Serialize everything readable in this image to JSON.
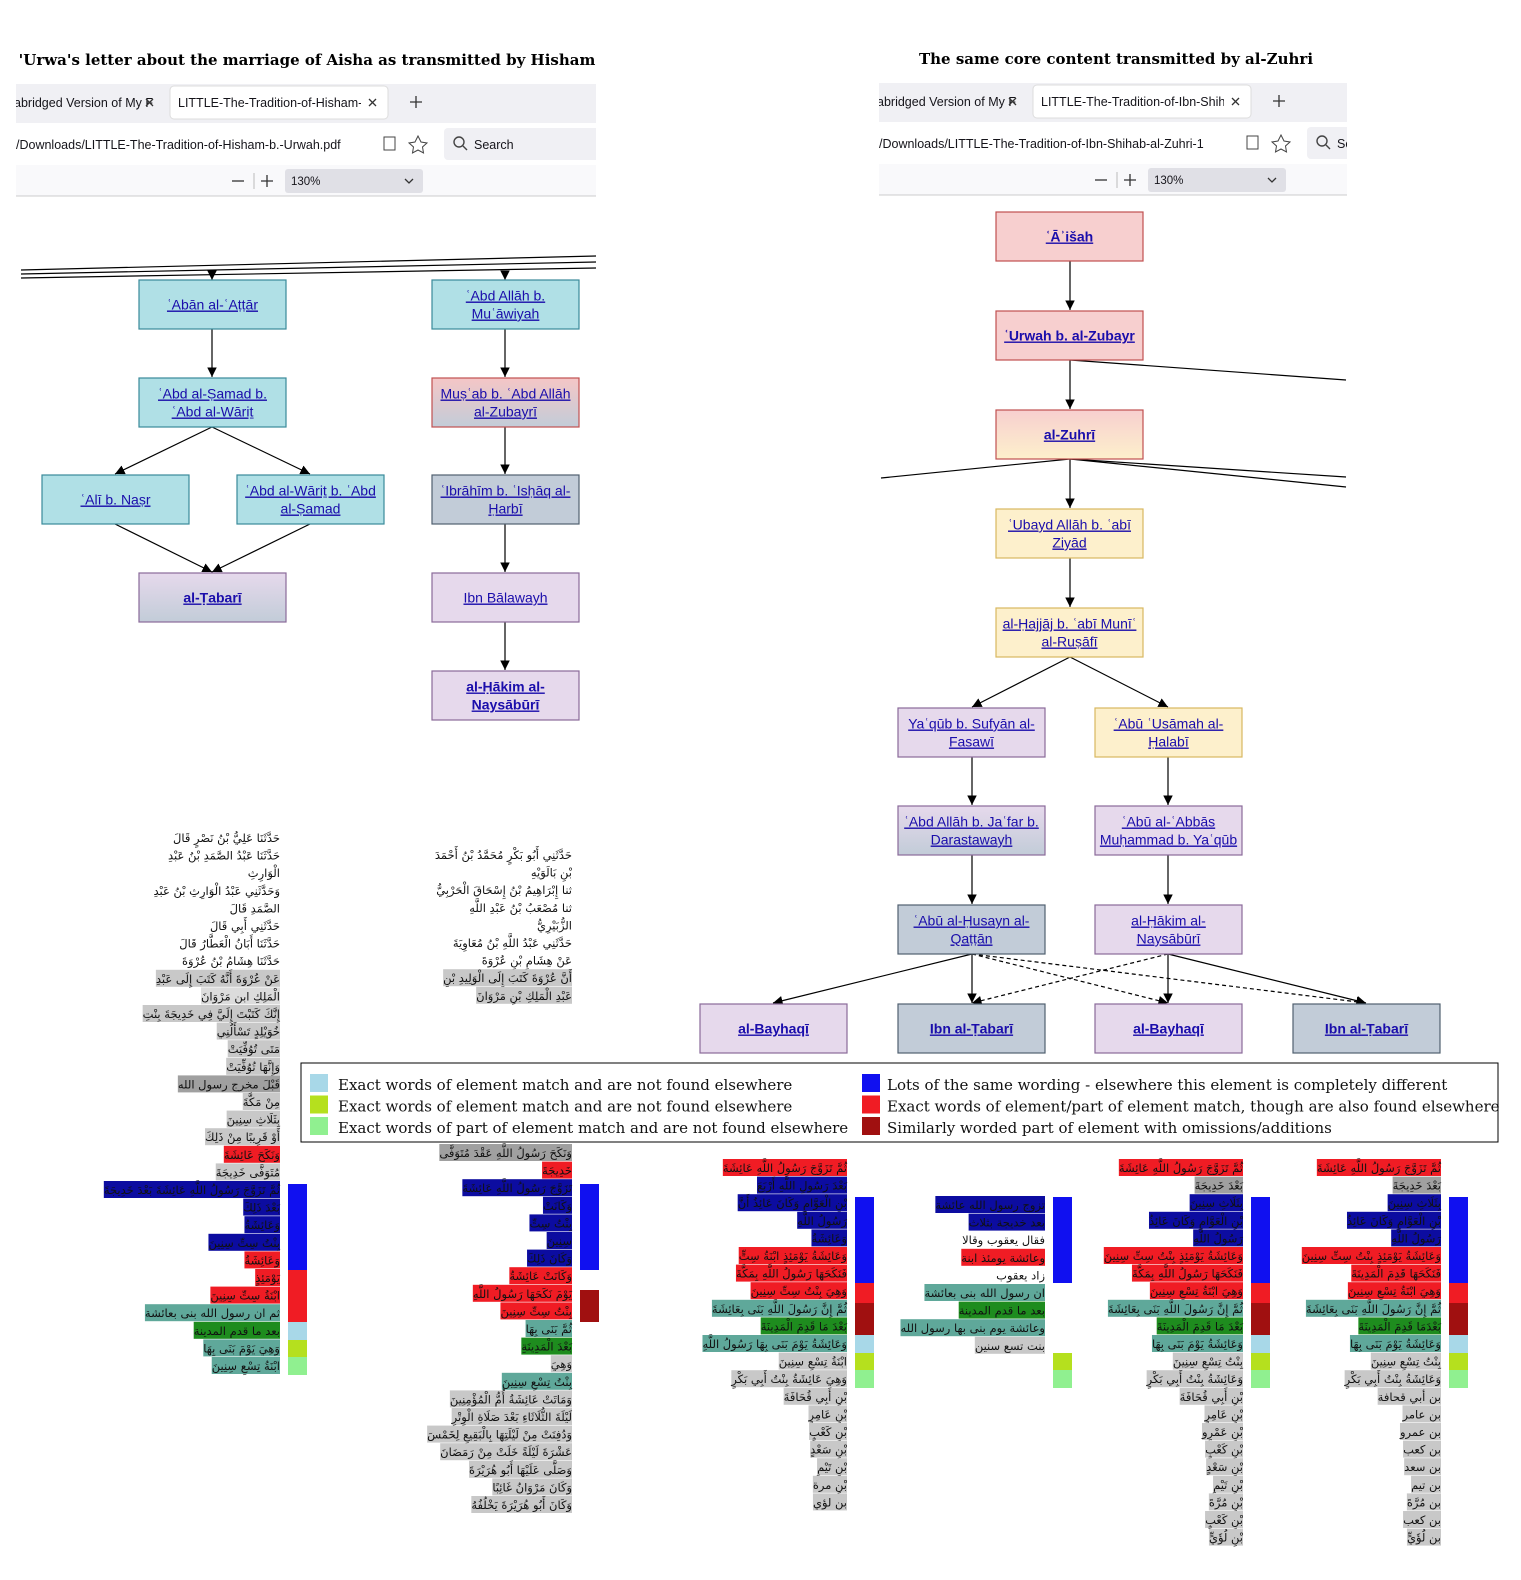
{
  "panels": [
    {
      "title": "'Urwa's letter about the marriage of Aisha as transmitted by Hisham",
      "tabs": [
        "abridged Version of My F",
        "LITTLE-The-Tradition-of-Hisham-b."
      ],
      "url": "/Downloads/LITTLE-The-Tradition-of-Hisham-b.-Urwah.pdf",
      "search": "Search",
      "zoom": "130%",
      "nodes": [
        {
          "label": [
            "ʿAbān al-ʿAṭṭār"
          ],
          "fill": "#b0e0e6",
          "stroke": "#3a8a9a"
        },
        {
          "label": [
            "ʿAbd Allāh b.",
            "Muʿāwiyah"
          ],
          "fill": "#b0e0e6",
          "stroke": "#3a8a9a"
        },
        {
          "label": [
            "ʿAbd al-Ṣamad b.",
            "ʿAbd al-Wāriṯ"
          ],
          "fill": "#b0e0e6",
          "stroke": "#3a8a9a"
        },
        {
          "label": [
            "Muṣʿab b. ʿAbd Allāh",
            "al-Zubayrī"
          ],
          "fill": [
            "#f5c6c6",
            "#c2ccd8"
          ],
          "stroke": "#c05050"
        },
        {
          "label": [
            "ʿAlī b. Naṣr"
          ],
          "fill": "#b0e0e6",
          "stroke": "#3a8a9a"
        },
        {
          "label": [
            "ʿAbd al-Wāriṯ b. ʿAbd",
            "al-Ṣamad"
          ],
          "fill": "#b0e0e6",
          "stroke": "#3a8a9a"
        },
        {
          "label": [
            "ʿIbrāhīm b. ʿIsḥāq al-",
            "Ḥarbī"
          ],
          "fill": "#c2ccd8",
          "stroke": "#506070"
        },
        {
          "label": [
            "al-Ṭabarī"
          ],
          "fill": [
            "#e6d9ec",
            "#c2ccd8"
          ],
          "stroke": "#8a6a9a",
          "bold": true
        },
        {
          "label": [
            "Ibn Bālawayh"
          ],
          "fill": "#e6d9ec",
          "stroke": "#8a6a9a"
        },
        {
          "label": [
            "al-Ḥākim al-",
            "Naysābūrī"
          ],
          "fill": "#e6d9ec",
          "stroke": "#8a6a9a",
          "bold": true
        }
      ]
    },
    {
      "title": "The same core content transmitted by al-Zuhri",
      "tabs": [
        "abridged Version of My F",
        "LITTLE-The-Tradition-of-Ibn-Shihab"
      ],
      "url": "/Downloads/LITTLE-The-Tradition-of-Ibn-Shihab-al-Zuhri-1",
      "search": "Se",
      "zoom": "130%",
      "nodes": [
        {
          "label": [
            "ʿĀʾišah"
          ],
          "fill": "#f7cfcf",
          "stroke": "#c05050",
          "bold": true
        },
        {
          "label": [
            "ʿUrwah b. al-Zubayr"
          ],
          "fill": "#f7cfcf",
          "stroke": "#c05050",
          "bold": true
        },
        {
          "label": [
            "al-Zuhrī"
          ],
          "fill": [
            "#f7cfcf",
            "#fdf0cc"
          ],
          "stroke": "#c05050",
          "bold": true
        },
        {
          "label": [
            "ʿUbayd Allāh b. ʿabī",
            "Ziyād"
          ],
          "fill": "#fdf0cc",
          "stroke": "#d8b860"
        },
        {
          "label": [
            "al-Ḥajjāj b. ʿabī Munīʿ",
            "al-Ruṣāfī"
          ],
          "fill": "#fdf0cc",
          "stroke": "#d8b860"
        },
        {
          "label": [
            "Yaʿqūb b. Sufyān al-",
            "Fasawī"
          ],
          "fill": "#e6d9ec",
          "stroke": "#8a6a9a"
        },
        {
          "label": [
            "ʿAbū ʿUsāmah al-",
            "Ḥalabī"
          ],
          "fill": "#fdf0cc",
          "stroke": "#d8b860"
        },
        {
          "label": [
            "ʿAbd Allāh b. Jaʿfar b.",
            "Darastawayh"
          ],
          "fill": [
            "#e6d9ec",
            "#c2ccd8"
          ],
          "stroke": "#8a6a9a"
        },
        {
          "label": [
            "ʿAbū al-ʿAbbās",
            "Muḥammad b. Yaʿqūb"
          ],
          "fill": "#e6d9ec",
          "stroke": "#8a6a9a"
        },
        {
          "label": [
            "ʿAbū al-Ḥusayn al-",
            "Qaṭṭān"
          ],
          "fill": "#c2ccd8",
          "stroke": "#506070"
        },
        {
          "label": [
            "al-Ḥākim al-",
            "Naysābūrī"
          ],
          "fill": "#e6d9ec",
          "stroke": "#8a6a9a"
        },
        {
          "label": [
            "al-Bayhaqī"
          ],
          "fill": "#e6d9ec",
          "stroke": "#8a6a9a",
          "bold": true
        },
        {
          "label": [
            "Ibn al-Ṭabarī"
          ],
          "fill": "#c2ccd8",
          "stroke": "#506070",
          "bold": true
        },
        {
          "label": [
            "al-Bayhaqī"
          ],
          "fill": "#e6d9ec",
          "stroke": "#8a6a9a",
          "bold": true
        },
        {
          "label": [
            "Ibn al-Ṭabarī"
          ],
          "fill": "#c2ccd8",
          "stroke": "#506070",
          "bold": true
        }
      ]
    }
  ],
  "legend": [
    {
      "color": "#a8d8e8",
      "text": "Exact words of element match and are not found elsewhere"
    },
    {
      "color": "#b5e01e",
      "text": "Exact words of element match and are not found elsewhere"
    },
    {
      "color": "#90f090",
      "text": "Exact words of part of element match and are not found elsewhere"
    },
    {
      "color": "#1010f0",
      "text": "Lots of the same wording - elsewhere this element is completely different"
    },
    {
      "color": "#f01c24",
      "text": "Exact words of element/part of element match, though are also found elsewhere"
    },
    {
      "color": "#a01010",
      "text": "Similarly worded part of element with omissions/additions"
    }
  ],
  "texts": [
    {
      "bars": [
        "#1010f0",
        "#f01c24",
        "#a8d8e8",
        "#b5e01e",
        "#90f090"
      ],
      "blocks": [
        [
          {
            "t": "حَدَّثَنَا عَلِيُّ بْنُ نَصْرٍ قَالَ"
          },
          {
            "t": "حَدَّثَنَا عَبْدُ الصَّمَدِ بْنُ عَبْدِ"
          },
          {
            "t": "الْوَارِثِ"
          },
          {
            "t": "وَحَدَّثَنِي عَبْدُ الْوَارِثِ بْنُ عَبْدِ"
          },
          {
            "t": "الصَّمَدِ قَالَ"
          },
          {
            "t": "حَدَّثَنِي أَبِي قَالَ"
          },
          {
            "t": "حَدَّثَنَا أَبَانُ الْعَطَّارُ قَالَ"
          },
          {
            "t": "حَدَّثَنَا هِشَامُ بْنُ عُرْوَةَ"
          },
          {
            "t": "عَنْ عُرْوَةَ أَنَّهُ كَتَبَ إِلَى عَبْدِ",
            "bg": "#c8c8c8"
          },
          {
            "t": "الْمَلِكِ ابن مَرْوَانَ",
            "bg": "#dcdcdc"
          },
          {
            "t": "إِنَّكَ كَتَبْتَ إِلَيَّ فِي خَدِيجَةَ بِنْتِ",
            "bg": "#c8c8c8"
          },
          {
            "t": "خُوَيْلِدٍ تَسْأَلُنِي",
            "bg": "#c8c8c8"
          },
          {
            "t": "مَتَى تُوُفِّيَتْ",
            "bg": "#c8c8c8"
          },
          {
            "t": "وَإِنَّهَا تُوُفِّيَتْ",
            "bg": "#c8c8c8"
          },
          {
            "t": "قَبْلَ مخرج رسول الله",
            "bg": "#a0a0a0"
          },
          {
            "t": "مِنْ مَكَّةَ",
            "bg": "#c8c8c8"
          },
          {
            "t": "بِثَلَاثِ سِنِينَ",
            "bg": "#c8c8c8"
          },
          {
            "t": "أَوْ قَرِيبًا مِنْ ذَلِكَ",
            "bg": "#c8c8c8"
          },
          {
            "t": "وَنَكَحَ عَائِشَةَ",
            "bg": "#f01c24"
          },
          {
            "t": "مُتَوَفَّى خَدِيجَةَ",
            "bg": "#c8c8c8"
          },
          {
            "t": "ثُمَّ تَزَوَّجَ رَسُولُ اللَّهِ عَائِشَةَ بَعْدَ خَدِيجَةَ",
            "bg": "#0c0ca0"
          },
          {
            "t": "بَعْدَ ذَلِكَ",
            "bg": "#0c0ca0"
          },
          {
            "t": "وَعَائِشَةُ",
            "bg": "#0c0ca0"
          },
          {
            "t": "بِنْتُ سِتِّ سِنِينَ",
            "bg": "#0c0ca0"
          },
          {
            "t": "وَعَائِشَةُ",
            "bg": "#f01c24"
          },
          {
            "t": "يَوْمَئِذٍ",
            "bg": "#f01c24"
          },
          {
            "t": "ابْنَةُ سِتِّ سِنِينَ",
            "bg": "#f01c24"
          },
          {
            "t": "ثم ان رسول الله بنى بعائشة",
            "bg": "#5fa89a"
          },
          {
            "t": "بعد ما قدم المدينة",
            "bg": "#1e8c1e"
          },
          {
            "t": "وَهِيَ يَوْمَ بَنَى بِهَا",
            "bg": "#5fa89a"
          },
          {
            "t": "ابْنَةُ تِسْعِ سِنِينَ",
            "bg": "#5fa89a"
          }
        ]
      ]
    },
    {
      "bars": [
        "#1010f0",
        "#a01010"
      ],
      "blocks": [
        [
          {
            "t": "حَدَّثَنِي أَبُو بَكْرٍ مُحَمَّدُ بْنُ أَحْمَدَ"
          },
          {
            "t": "بْنِ بَالَوَيْهِ"
          },
          {
            "t": "ثنا إِبْرَاهِيمُ بْنُ إِسْحَاقَ الْحَرْبِيُّ"
          },
          {
            "t": "ثنا مُصْعَبُ بْنُ عَبْدِ اللَّهِ"
          },
          {
            "t": "الزُّبَيْرِيُّ"
          },
          {
            "t": "حَدَّثَنِي عَبْدُ اللَّهِ بْنُ مُعَاوِيَةَ"
          },
          {
            "t": "عَنْ هِشَامِ بْنِ عُرْوَةَ"
          },
          {
            "t": "أَنَّ عُرْوَةَ كَتَبَ إِلَى الْوَلِيدِ بْنِ",
            "bg": "#c8c8c8"
          },
          {
            "t": "عَبْدِ الْمَلِكِ بْنِ مَرْوَانَ",
            "bg": "#c8c8c8"
          }
        ],
        [
          {
            "t": "وَنَكَحَ رَسُولُ اللَّهِ عَقْدَ مُتَوَفَّى",
            "bg": "#a0a0a0"
          },
          {
            "t": "خَدِيجَةَ",
            "bg": "#f01c24"
          },
          {
            "t": "تَزَوَّجَ رَسُولُ اللَّهِ عَائِشَةَ",
            "bg": "#0c0ca0"
          },
          {
            "t": "وَكَانَتْ",
            "bg": "#0c0ca0"
          },
          {
            "t": "بِنْتُ سِتِّ",
            "bg": "#0c0ca0"
          },
          {
            "t": "سِنِينَ",
            "bg": "#0c0ca0"
          },
          {
            "t": "وَكَانَ ذَلِكَ",
            "bg": "#0c0ca0"
          },
          {
            "t": "وَكَانَتْ عَائِشَةُ",
            "bg": "#f01c24"
          },
          {
            "t": "يَوْمَ نَكَحَهَا رَسُولُ اللَّهِ",
            "bg": "#f01c24"
          },
          {
            "t": "بِنْتُ سِتِّ سِنِينَ",
            "bg": "#f01c24"
          },
          {
            "t": "ثُمَّ بَنَى بِهَا",
            "bg": "#5fa89a"
          },
          {
            "t": "بَعْدَ الْمَدِينَةِ",
            "bg": "#1e8c1e"
          },
          {
            "t": "وَهِيَ",
            "bg": "#c8c8c8"
          },
          {
            "t": "بِنْتُ تِسْعِ سِنِينَ",
            "bg": "#5fa89a"
          },
          {
            "t": "وَمَاتَتْ عَائِشَةُ أُمُّ الْمُؤْمِنِينَ",
            "bg": "#c8c8c8"
          },
          {
            "t": "لَيْلَةَ الثُّلَاثَاءِ بَعْدَ صَلَاةِ الْوِتْرِ",
            "bg": "#c8c8c8"
          },
          {
            "t": "وَدُفِنَتْ مِنْ لَيْلَتِهَا بِالْبَقِيعِ لِخَمْسَ",
            "bg": "#c8c8c8"
          },
          {
            "t": "عَشْرَةَ لَيْلَةً خَلَتْ مِنْ رَمَضَانَ",
            "bg": "#c8c8c8"
          },
          {
            "t": "وَصَلَّى عَلَيْهَا أَبُو هُرَيْرَةَ",
            "bg": "#c8c8c8"
          },
          {
            "t": "وَكَانَ مَرْوَانُ غَائِبًا",
            "bg": "#c8c8c8"
          },
          {
            "t": "وَكَانَ أَبُو هُرَيْرَةَ يَخْلُفُهُ",
            "bg": "#c8c8c8"
          }
        ]
      ]
    },
    {
      "bars": [
        "#1010f0",
        "#f01c24",
        "#a01010",
        "#a8d8e8",
        "#b5e01e",
        "#90f090"
      ],
      "blocks": [
        [
          {
            "t": "ثُمَّ تَزَوَّجَ رَسُولُ اللَّهِ عَائِشَةَ",
            "bg": "#f01c24"
          },
          {
            "t": "بَعْدَ رَسُولِ اللَّهِ أَرْبَعَ",
            "bg": "#0c0ca0"
          },
          {
            "t": "بْنِ الْعَوَّامِ وَكَانَ عَائِذُ أَنَّ",
            "bg": "#0c0ca0"
          },
          {
            "t": "رَسُولُ اللَّهِ",
            "bg": "#0c0ca0"
          },
          {
            "t": "وَعَائِشَةُ",
            "bg": "#0c0ca0"
          },
          {
            "t": "وَعَائِشَةُ يَوْمَئِذٍ ابْنَةُ سِتٍّ",
            "bg": "#f01c24"
          },
          {
            "t": "فَنَكَحَهَا رَسُولُ اللَّهِ بِمَكَّةَ",
            "bg": "#f01c24"
          },
          {
            "t": "وَهِيَ بِنْتُ سِتِّ سِنِينَ",
            "bg": "#f01c24"
          },
          {
            "t": "ثُمَّ إِنَّ رَسُولَ اللَّهِ بَنَى بِعَائِشَةَ",
            "bg": "#5fa89a"
          },
          {
            "t": "بَعْدَ مَا قَدِمَ الْمَدِينَةَ",
            "bg": "#1e8c1e"
          },
          {
            "t": "وَعَائِشَةُ يَوْمَ بَنَى بِهَا رَسُولُ اللَّهِ",
            "bg": "#5fa89a"
          },
          {
            "t": "ابْنَةُ تِسْعِ سِنِينَ",
            "bg": "#c8c8c8"
          },
          {
            "t": "وَهِيَ عَائِشَةُ بِنْتُ أَبِي بَكْرٍ",
            "bg": "#c8c8c8"
          },
          {
            "t": "بْنِ أَبِي قُحَافَةَ",
            "bg": "#c8c8c8"
          },
          {
            "t": "بْنِ عَامِرٍ",
            "bg": "#c8c8c8"
          },
          {
            "t": "بْنِ كَعْبٍ",
            "bg": "#c8c8c8"
          },
          {
            "t": "بْنِ سَعْدٍ",
            "bg": "#c8c8c8"
          },
          {
            "t": "بْنِ تَيْمٍ",
            "bg": "#c8c8c8"
          },
          {
            "t": "بْنِ مرة",
            "bg": "#c8c8c8"
          },
          {
            "t": "بن لؤي",
            "bg": "#c8c8c8"
          }
        ]
      ]
    },
    {
      "bars": [
        "#1010f0",
        "#b5e01e",
        "#90f090"
      ],
      "blocks": [
        [
          {
            "t": "تزوج رسول الله عائشة",
            "bg": "#0c0ca0"
          },
          {
            "t": "بعد خديجة بثلاث",
            "bg": "#0c0ca0"
          },
          {
            "t": "فقال يعقوب وقالا"
          },
          {
            "t": "وعائشة يومئذ ابنة",
            "bg": "#f01c24"
          },
          {
            "t": "زاد يعقوب"
          },
          {
            "t": "ان رسول الله بنى بعائشة",
            "bg": "#5fa89a"
          },
          {
            "t": "بعد ما قدم المدينة",
            "bg": "#1e8c1e"
          },
          {
            "t": "وعائشة يوم بنى بها رسول الله",
            "bg": "#5fa89a"
          },
          {
            "t": "بنت تسع سنين",
            "bg": "#c8c8c8"
          }
        ]
      ]
    },
    {
      "bars": [
        "#1010f0",
        "#f01c24",
        "#a01010",
        "#a8d8e8",
        "#b5e01e",
        "#90f090"
      ],
      "blocks": [
        [
          {
            "t": "ثُمَّ تَزَوَّجَ رَسُولُ اللَّهِ عَائِشَةَ",
            "bg": "#f01c24"
          },
          {
            "t": "بَعْدَ خَدِيجَةَ",
            "bg": "#a0a0a0"
          },
          {
            "t": "بِثَلَاثِ سِنِينَ",
            "bg": "#0c0ca0"
          },
          {
            "t": "بْنِ الْعَوَّامِ وَكَانَ عَائِذُ",
            "bg": "#0c0ca0"
          },
          {
            "t": "رَسُولُ اللَّهِ",
            "bg": "#0c0ca0"
          },
          {
            "t": "وَعَائِشَةُ يَوْمَئِذٍ بِنْتُ سِتِّ سِنِينَ",
            "bg": "#f01c24"
          },
          {
            "t": "فَنَكَحَهَا رَسُولُ اللَّهِ بِمَكَّةَ",
            "bg": "#f01c24"
          },
          {
            "t": "وَهِيَ ابْنَةُ تِسْعِ سِنِينَ",
            "bg": "#f01c24"
          },
          {
            "t": "ثُمَّ إِنَّ رَسُولَ اللَّهِ بَنَى بِعَائِشَةَ",
            "bg": "#5fa89a"
          },
          {
            "t": "بَعْدَ مَا قَدِمَ الْمَدِينَةَ",
            "bg": "#1e8c1e"
          },
          {
            "t": "وَعَائِشَةُ يَوْمَ بَنَى بِهَا",
            "bg": "#5fa89a"
          },
          {
            "t": "بِنْتُ تِسْعِ سِنِينَ",
            "bg": "#c8c8c8"
          },
          {
            "t": "وَعَائِشَةُ بِنْتُ أَبِي بَكْرٍ",
            "bg": "#c8c8c8"
          },
          {
            "t": "بْنِ أَبِي قُحَافَةَ",
            "bg": "#c8c8c8"
          },
          {
            "t": "بْنِ عَامِرٍ",
            "bg": "#c8c8c8"
          },
          {
            "t": "بْنِ عَمْرٍو",
            "bg": "#c8c8c8"
          },
          {
            "t": "بْنِ كَعْبٍ",
            "bg": "#c8c8c8"
          },
          {
            "t": "بْنِ سَعْدٍ",
            "bg": "#c8c8c8"
          },
          {
            "t": "بْنِ تَيْمٍ",
            "bg": "#c8c8c8"
          },
          {
            "t": "بْنِ مُرَّةَ",
            "bg": "#c8c8c8"
          },
          {
            "t": "بْنِ كَعْبٍ",
            "bg": "#c8c8c8"
          },
          {
            "t": "بْنِ لُؤَيٍّ",
            "bg": "#c8c8c8"
          }
        ]
      ]
    },
    {
      "bars": [
        "#1010f0",
        "#f01c24",
        "#a01010",
        "#a8d8e8",
        "#b5e01e",
        "#90f090"
      ],
      "blocks": [
        [
          {
            "t": "ثُمَّ تَزَوَّجَ رَسُولُ اللَّهِ عَائِشَةَ",
            "bg": "#f01c24"
          },
          {
            "t": "بَعْدَ خَدِيجَةَ",
            "bg": "#a0a0a0"
          },
          {
            "t": "بِثَلَاثِ سِنِينَ",
            "bg": "#0c0ca0"
          },
          {
            "t": "بْنِ الْعَوَّامِ وَكَانَ عَائِذُ",
            "bg": "#0c0ca0"
          },
          {
            "t": "رَسُولُ اللَّهِ",
            "bg": "#0c0ca0"
          },
          {
            "t": "وَعَائِشَةُ يَوْمَئِذٍ بِنْتُ سِتِّ سِنِينَ",
            "bg": "#f01c24"
          },
          {
            "t": "فَنَكَحَهَا قَدِمَ الْمَدِينَةَ",
            "bg": "#f01c24"
          },
          {
            "t": "وَهِيَ ابْنَةُ تِسْعِ سِنِينَ",
            "bg": "#f01c24"
          },
          {
            "t": "ثُمَّ إِنَّ رَسُولَ اللَّهِ بَنَى بِعَائِشَةَ",
            "bg": "#5fa89a"
          },
          {
            "t": "بَعْدَمَا قَدِمَ الْمَدِينَةَ",
            "bg": "#1e8c1e"
          },
          {
            "t": "وَعَائِشَةُ يَوْمَ بَنَى بِهَا",
            "bg": "#5fa89a"
          },
          {
            "t": "بِنْتُ تِسْعِ سِنِينَ",
            "bg": "#c8c8c8"
          },
          {
            "t": "وَعَائِشَةُ بِنْتُ أَبِي بَكْرٍ",
            "bg": "#c8c8c8"
          },
          {
            "t": "بن أبي قحافة",
            "bg": "#c8c8c8"
          },
          {
            "t": "بن عامر",
            "bg": "#c8c8c8"
          },
          {
            "t": "بن عمرو",
            "bg": "#c8c8c8"
          },
          {
            "t": "بن كعب",
            "bg": "#c8c8c8"
          },
          {
            "t": "بن سعد",
            "bg": "#c8c8c8"
          },
          {
            "t": "بن تيم",
            "bg": "#c8c8c8"
          },
          {
            "t": "بن مُرَّةَ",
            "bg": "#c8c8c8"
          },
          {
            "t": "بن كعب",
            "bg": "#c8c8c8"
          },
          {
            "t": "بن لُؤَيٍّ",
            "bg": "#c8c8c8"
          }
        ]
      ]
    }
  ]
}
